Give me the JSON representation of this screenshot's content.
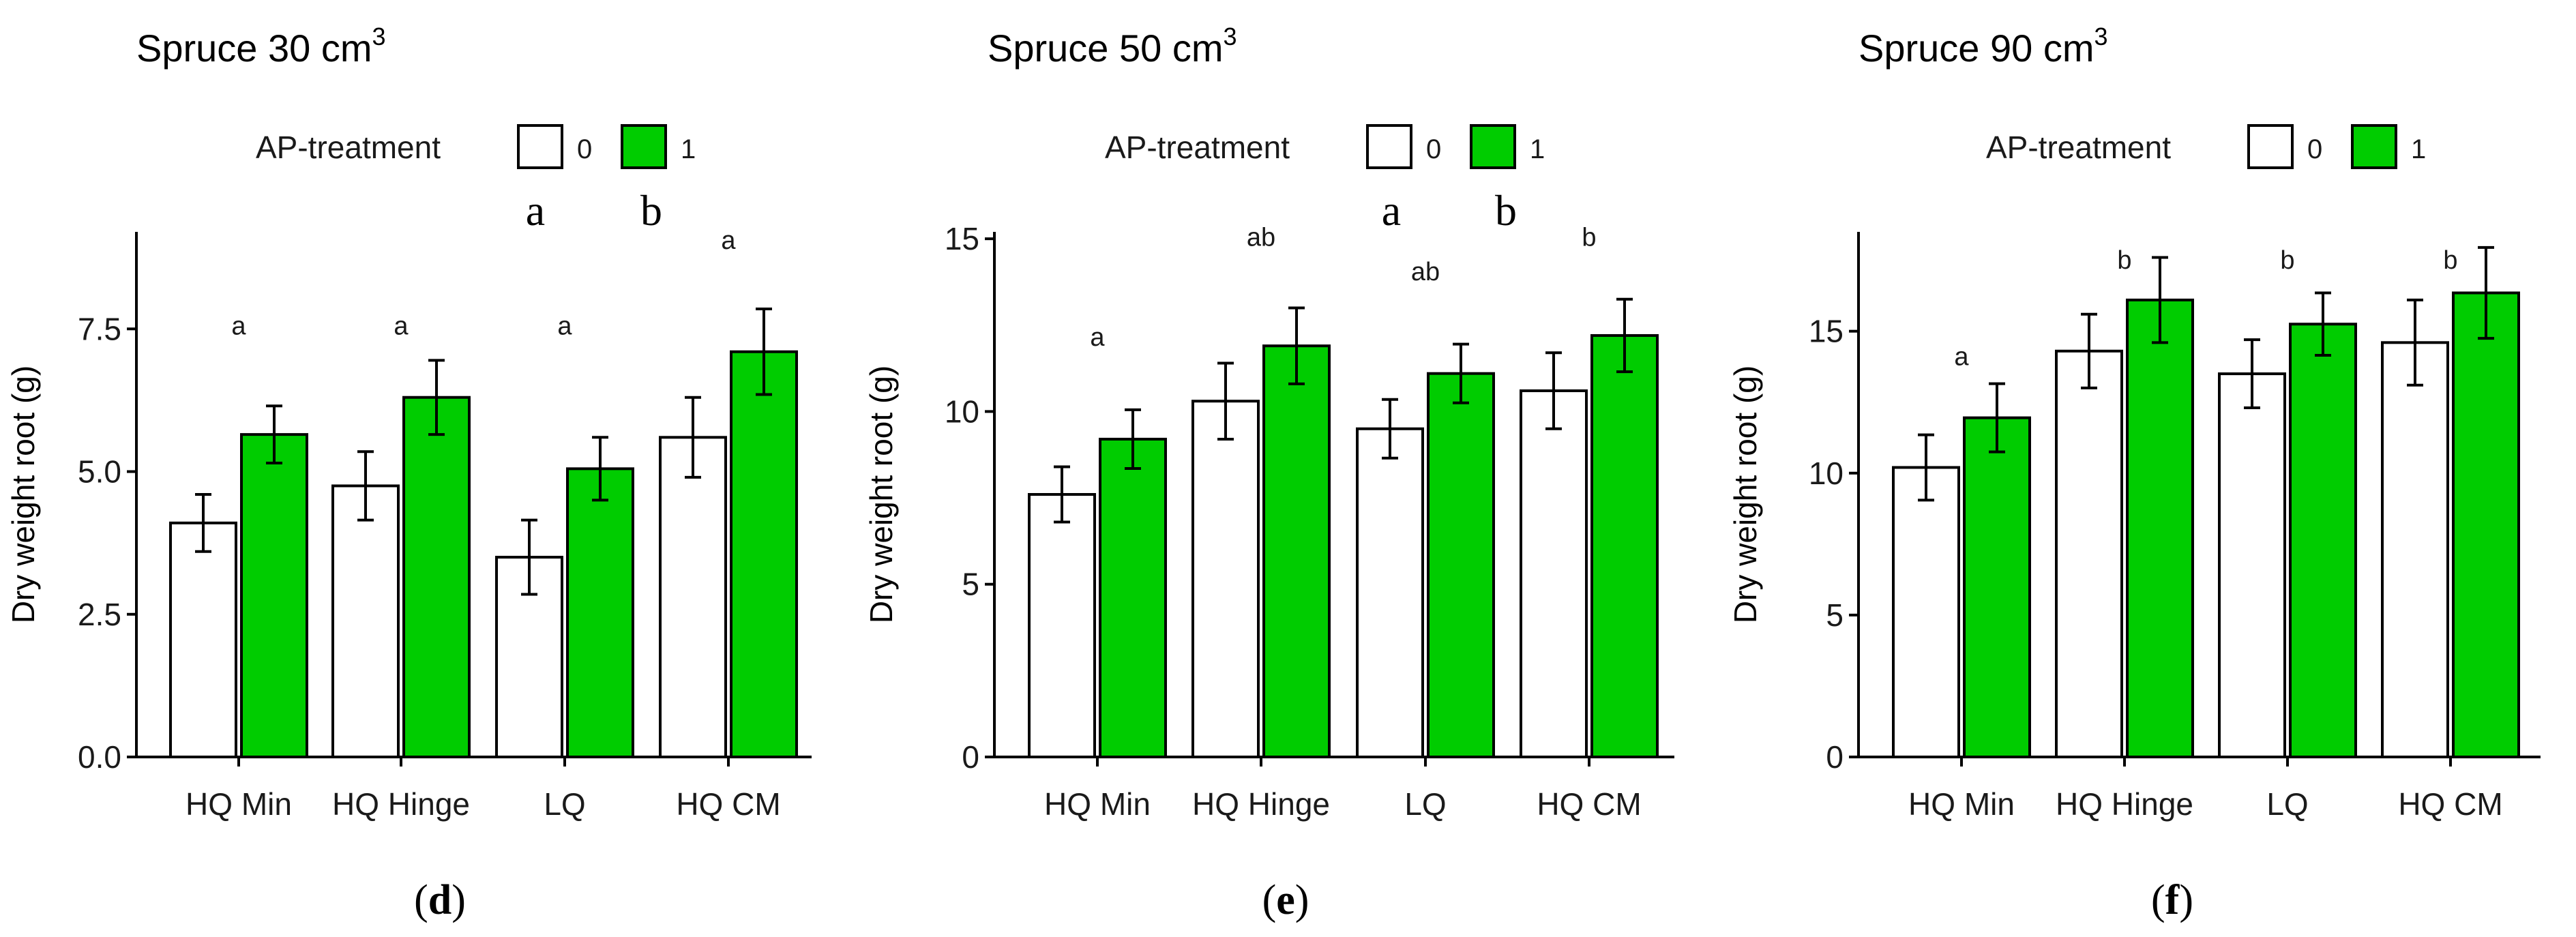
{
  "colors": {
    "treated": "#00cc00",
    "untreated": "#ffffff",
    "stroke": "#000000"
  },
  "legend": {
    "title": "AP-treatment",
    "levels": [
      "0",
      "1"
    ]
  },
  "chart_data": [
    {
      "type": "bar",
      "title": "Spruce 30 cm",
      "title_sup": "3",
      "ylabel": "Dry weight root (g)",
      "xlabel": "",
      "categories": [
        "HQ Min",
        "HQ Hinge",
        "LQ",
        "HQ CM"
      ],
      "ylim": [
        0,
        9.2
      ],
      "yticks": [
        0,
        2.5,
        5,
        7.5
      ],
      "ytick_labels": [
        "0.0",
        "2.5",
        "5.0",
        "7.5"
      ],
      "series": [
        {
          "name": "0",
          "values": [
            4.1,
            4.75,
            3.5,
            5.6
          ],
          "err": [
            0.5,
            0.6,
            0.65,
            0.7
          ]
        },
        {
          "name": "1",
          "values": [
            5.65,
            6.3,
            5.05,
            7.1
          ],
          "err": [
            0.5,
            0.65,
            0.55,
            0.75
          ]
        }
      ],
      "group_letters": [
        "a",
        "a",
        "a",
        "a"
      ],
      "group_letter_y": [
        7.4,
        7.4,
        7.4,
        8.9
      ],
      "treatment_letters": [
        "a",
        "b"
      ],
      "panel_label": "d"
    },
    {
      "type": "bar",
      "title": "Spruce 50 cm",
      "title_sup": "3",
      "ylabel": "Dry weight root (g)",
      "xlabel": "",
      "categories": [
        "HQ Min",
        "HQ Hinge",
        "LQ",
        "HQ CM"
      ],
      "ylim": [
        0,
        15.2
      ],
      "yticks": [
        0,
        5,
        10,
        15
      ],
      "ytick_labels": [
        "0",
        "5",
        "10",
        "15"
      ],
      "series": [
        {
          "name": "0",
          "values": [
            7.6,
            10.3,
            9.5,
            10.6
          ],
          "err": [
            0.8,
            1.1,
            0.85,
            1.1
          ]
        },
        {
          "name": "1",
          "values": [
            9.2,
            11.9,
            11.1,
            12.2
          ],
          "err": [
            0.85,
            1.1,
            0.85,
            1.05
          ]
        }
      ],
      "group_letters": [
        "a",
        "ab",
        "ab",
        "b"
      ],
      "group_letter_y": [
        11.9,
        14.8,
        13.8,
        14.8
      ],
      "treatment_letters": [
        "a",
        "b"
      ],
      "panel_label": "e"
    },
    {
      "type": "bar",
      "title": "Spruce 90 cm",
      "title_sup": "3",
      "ylabel": "Dry weight root (g)",
      "xlabel": "",
      "categories": [
        "HQ Min",
        "HQ Hinge",
        "LQ",
        "HQ CM"
      ],
      "ylim": [
        0,
        18.5
      ],
      "yticks": [
        0,
        5,
        10,
        15
      ],
      "ytick_labels": [
        "0",
        "5",
        "10",
        "15"
      ],
      "series": [
        {
          "name": "0",
          "values": [
            10.2,
            14.3,
            13.5,
            14.6
          ],
          "err": [
            1.15,
            1.3,
            1.2,
            1.5
          ]
        },
        {
          "name": "1",
          "values": [
            11.95,
            16.1,
            15.25,
            16.35
          ],
          "err": [
            1.2,
            1.5,
            1.1,
            1.6
          ]
        }
      ],
      "group_letters": [
        "a",
        "b",
        "b",
        "b"
      ],
      "group_letter_y": [
        13.8,
        17.2,
        17.2,
        17.2
      ],
      "treatment_letters": [],
      "panel_label": "f"
    }
  ]
}
